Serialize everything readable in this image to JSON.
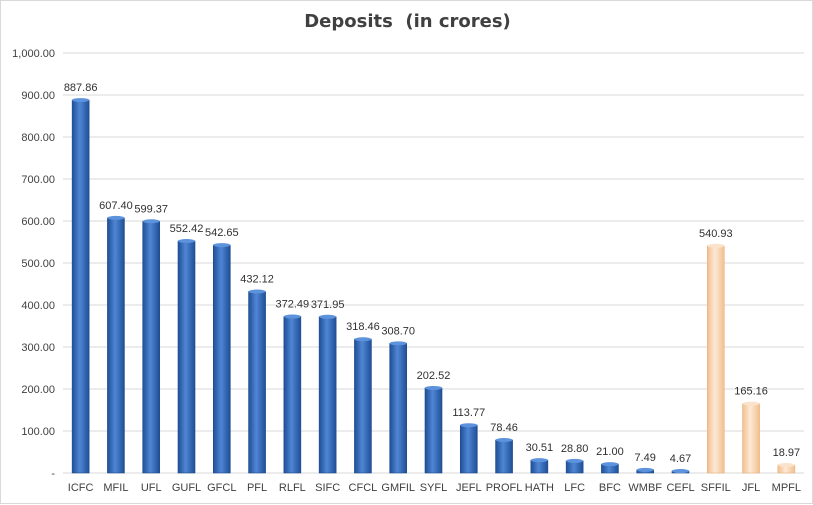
{
  "chart_data": {
    "type": "bar",
    "title": "Deposits  (in crores)",
    "xlabel": "",
    "ylabel": "",
    "ylim": [
      0,
      1000
    ],
    "yticks": [
      0,
      100,
      200,
      300,
      400,
      500,
      600,
      700,
      800,
      900,
      1000
    ],
    "ytick_labels": [
      "-",
      "100.00",
      "200.00",
      "300.00",
      "400.00",
      "500.00",
      "600.00",
      "700.00",
      "800.00",
      "900.00",
      "1,000.00"
    ],
    "grid": true,
    "legend": "none",
    "categories": [
      "ICFC",
      "MFIL",
      "UFL",
      "GUFL",
      "GFCL",
      "PFL",
      "RLFL",
      "SIFC",
      "CFCL",
      "GMFIL",
      "SYFL",
      "JEFL",
      "PROFL",
      "HATH",
      "LFC",
      "BFC",
      "WMBF",
      "CEFL",
      "SFFIL",
      "JFL",
      "MPFL"
    ],
    "values": [
      887.86,
      607.4,
      599.37,
      552.42,
      542.65,
      432.12,
      372.49,
      371.95,
      318.46,
      308.7,
      202.52,
      113.77,
      78.46,
      30.51,
      28.8,
      21.0,
      7.49,
      4.67,
      540.93,
      165.16,
      18.97
    ],
    "value_labels": [
      "887.86",
      "607.40",
      "599.37",
      "552.42",
      "542.65",
      "432.12",
      "372.49",
      "371.95",
      "318.46",
      "308.70",
      "202.52",
      "113.77",
      "78.46",
      "30.51",
      "28.80",
      "21.00",
      "7.49",
      "4.67",
      "540.93",
      "165.16",
      "18.97"
    ],
    "bar_colors": [
      "#2e66b8",
      "#2e66b8",
      "#2e66b8",
      "#2e66b8",
      "#2e66b8",
      "#2e66b8",
      "#2e66b8",
      "#2e66b8",
      "#2e66b8",
      "#2e66b8",
      "#2e66b8",
      "#2e66b8",
      "#2e66b8",
      "#2e66b8",
      "#2e66b8",
      "#2e66b8",
      "#2e66b8",
      "#2e66b8",
      "#f7cfa6",
      "#f7cfa6",
      "#f7cfa6"
    ],
    "colors": {
      "blue_bar": "#2e66b8",
      "peach_bar": "#f7cfa6",
      "gridline": "#d9d9d9",
      "text": "#404040"
    }
  }
}
